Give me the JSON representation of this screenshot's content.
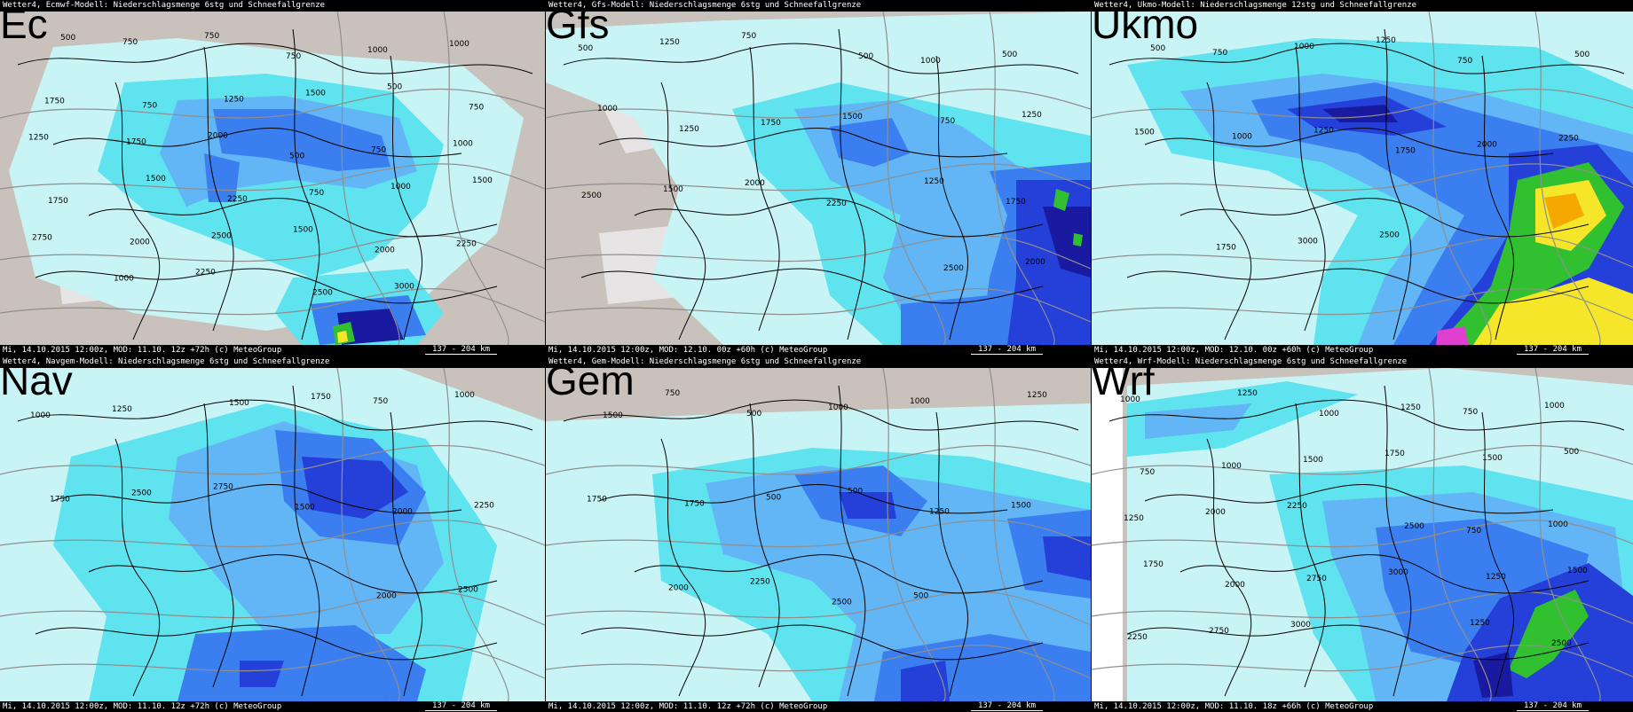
{
  "panels": [
    {
      "id": "ec",
      "label": "Ec",
      "header": "Wetter4, Ecmwf-Modell: Niederschlagsmenge 6stg und Schneefallgrenze",
      "footer": "Mi, 14.10.2015 12:00z, MOD: 11.10. 12z +72h (c) MeteoGroup",
      "scale": "137 - 204 km",
      "intensity": 0.45,
      "contour_labels": [
        "750",
        "750",
        "750",
        "1000",
        "1000",
        "500",
        "750",
        "1250",
        "1500",
        "500",
        "750",
        "1750",
        "1750",
        "2000",
        "500",
        "750",
        "1000",
        "1250",
        "1500",
        "2250",
        "750",
        "1000",
        "1500",
        "1750",
        "2000",
        "2500",
        "1500",
        "2000",
        "2250",
        "2750",
        "1000",
        "2250",
        "2500",
        "3000"
      ]
    },
    {
      "id": "gfs",
      "label": "Gfs",
      "header": "Wetter4, Gfs-Modell: Niederschlagsmenge 6stg und Schneefallgrenze",
      "footer": "Mi, 14.10.2015 12:00z, MOD: 12.10. 00z +60h (c) MeteoGroup",
      "scale": "137 - 204 km",
      "intensity": 0.5,
      "contour_labels": [
        "1000",
        "500",
        "500",
        "1250",
        "750",
        "500",
        "750",
        "1250",
        "1000",
        "1250",
        "1750",
        "1500",
        "1250",
        "1750",
        "2500",
        "1500",
        "2000",
        "2250",
        "2500",
        "2000"
      ]
    },
    {
      "id": "ukmo",
      "label": "Ukmo",
      "header": "Wetter4, Ukmo-Modell: Niederschlagsmenge 12stg und Schneefallgrenze",
      "footer": "Mi, 14.10.2015 12:00z, MOD: 12.10. 00z +60h (c) MeteoGroup",
      "scale": "137 - 204 km",
      "intensity": 0.9,
      "contour_labels": [
        "750",
        "1000",
        "1250",
        "750",
        "500",
        "500",
        "1000",
        "1250",
        "1750",
        "2000",
        "2250",
        "1500",
        "1750",
        "3000",
        "2500"
      ]
    },
    {
      "id": "nav",
      "label": "Nav",
      "header": "Wetter4, Navgem-Modell: Niederschlagsmenge 6stg und Schneefallgrenze",
      "footer": "Mi, 14.10.2015 12:00z, MOD: 11.10. 12z +72h (c) MeteoGroup",
      "scale": "137 - 204 km",
      "intensity": 0.55,
      "contour_labels": [
        "750",
        "1000",
        "1000",
        "1250",
        "1500",
        "1750",
        "2000",
        "2250",
        "1750",
        "2500",
        "2750",
        "1500",
        "2000",
        "2500"
      ]
    },
    {
      "id": "gem",
      "label": "Gem",
      "header": "Wetter4, Gem-Modell: Niederschlagsmenge 6stg und Schneefallgrenze",
      "footer": "Mi, 14.10.2015 12:00z, MOD: 11.10. 12z +72h (c) MeteoGroup",
      "scale": "137 - 204 km",
      "intensity": 0.45,
      "contour_labels": [
        "750",
        "500",
        "1000",
        "1000",
        "1250",
        "1500",
        "1750",
        "500",
        "500",
        "1250",
        "1500",
        "1750",
        "2000",
        "2250",
        "2500",
        "500"
      ]
    },
    {
      "id": "wrf",
      "label": "Wrf",
      "header": "Wetter4, Wrf-Modell: Niederschlagsmenge 6stg und Schneefallgrenze",
      "footer": "Mi, 14.10.2015 12:00z, MOD: 11.10. 18z +66h (c) MeteoGroup",
      "scale": "137 - 204 km",
      "intensity": 0.6,
      "contour_labels": [
        "750",
        "1000",
        "1000",
        "1250",
        "1000",
        "1250",
        "1500",
        "500",
        "750",
        "1000",
        "1500",
        "1750",
        "750",
        "1000",
        "1250",
        "2000",
        "2250",
        "2500",
        "1250",
        "1500",
        "1750",
        "2000",
        "2750",
        "3000",
        "1250",
        "2500",
        "2250",
        "2750",
        "3000"
      ]
    }
  ],
  "colors": {
    "background": "#000000",
    "land_gray": "#c9c1bb",
    "light_gray": "#e6e4e4",
    "cyan_light": "#c8f4f5",
    "cyan": "#5fe3ee",
    "blue_light": "#62b6f5",
    "blue": "#3a7ef0",
    "blue_dark": "#2540d8",
    "navy": "#1a1aa0",
    "green": "#30c030",
    "yellow": "#f5e629",
    "orange": "#f5a800",
    "magenta": "#e040d0",
    "border": "#000000",
    "contour": "#8f8f8f"
  }
}
